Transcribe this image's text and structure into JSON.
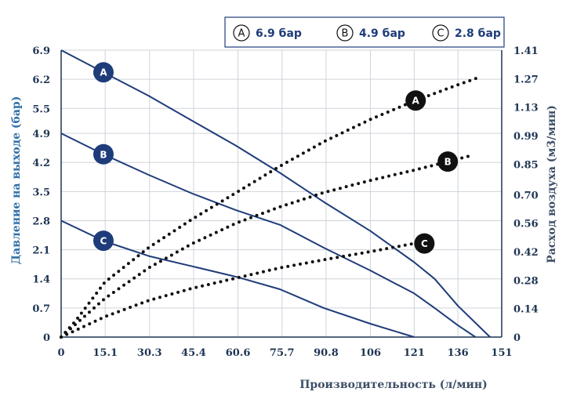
{
  "chart_data": {
    "type": "line",
    "xlabel": "Производительность (л/мин)",
    "ylabel_left": "Давление на выходе (бар)",
    "ylabel_right": "Расход воздуха (м3/мин)",
    "x_ticks": [
      "0",
      "15.1",
      "30.3",
      "45.4",
      "60.6",
      "75.7",
      "90.8",
      "106",
      "121",
      "136",
      "151"
    ],
    "x_tick_values": [
      0,
      15.1,
      30.3,
      45.4,
      60.6,
      75.7,
      90.8,
      106,
      121,
      136,
      151
    ],
    "xlim": [
      0,
      151
    ],
    "y_left_ticks": [
      "0",
      "0.7",
      "1.4",
      "2.1",
      "2.8",
      "3.5",
      "4.2",
      "4.9",
      "5.5",
      "6.2",
      "6.9"
    ],
    "y_left_tick_values": [
      0,
      0.7,
      1.4,
      2.1,
      2.8,
      3.5,
      4.2,
      4.9,
      5.5,
      6.2,
      6.9
    ],
    "ylim_left": [
      0,
      6.9
    ],
    "y_right_ticks": [
      "0",
      "0.14",
      "0.28",
      "0.42",
      "0.56",
      "0.70",
      "0.85",
      "0.99",
      "1.13",
      "1.27",
      "1.41"
    ],
    "y_right_tick_values": [
      0,
      0.14,
      0.28,
      0.42,
      0.56,
      0.7,
      0.85,
      0.99,
      1.13,
      1.27,
      1.41
    ],
    "ylim_right": [
      0,
      1.41
    ],
    "legend": [
      {
        "letter": "A",
        "label": "6.9 бар"
      },
      {
        "letter": "B",
        "label": "4.9 бар"
      },
      {
        "letter": "C",
        "label": "2.8 бар"
      }
    ],
    "legend_position": "top-right",
    "grid": true,
    "colors": {
      "pressure": "#1f3c7a",
      "air": "#111111",
      "grid": "#cfd3da",
      "axis_title": "#2e6fa8"
    },
    "series": [
      {
        "name": "A",
        "axis": "left",
        "style": "solid",
        "badge_x": 14.5,
        "x": [
          0,
          15,
          30,
          45,
          60,
          75,
          90,
          106,
          121,
          128,
          136,
          147
        ],
        "y": [
          6.9,
          6.35,
          5.8,
          5.2,
          4.6,
          3.95,
          3.25,
          2.55,
          1.8,
          1.4,
          0.75,
          0.0
        ]
      },
      {
        "name": "B",
        "axis": "left",
        "style": "solid",
        "badge_x": 14.5,
        "x": [
          0,
          15,
          30,
          45,
          60,
          75,
          90,
          106,
          121,
          128,
          136,
          142
        ],
        "y": [
          4.9,
          4.38,
          3.9,
          3.45,
          3.05,
          2.7,
          2.15,
          1.6,
          1.05,
          0.7,
          0.28,
          0.0
        ]
      },
      {
        "name": "C",
        "axis": "left",
        "style": "solid",
        "badge_x": 14.5,
        "x": [
          0,
          15,
          30,
          45,
          60,
          75,
          90,
          106,
          121
        ],
        "y": [
          2.8,
          2.3,
          1.95,
          1.7,
          1.45,
          1.15,
          0.7,
          0.32,
          0.0
        ]
      },
      {
        "name": "A",
        "axis": "right",
        "style": "dotted",
        "badge_x": 121.5,
        "x": [
          0,
          5,
          15,
          30,
          45,
          60,
          75,
          90,
          106,
          121,
          136,
          144
        ],
        "y": [
          0,
          0.08,
          0.27,
          0.44,
          0.58,
          0.71,
          0.84,
          0.96,
          1.07,
          1.16,
          1.24,
          1.28
        ]
      },
      {
        "name": "B",
        "axis": "right",
        "style": "dotted",
        "badge_x": 132.5,
        "x": [
          0,
          15,
          30,
          45,
          60,
          75,
          90,
          106,
          121,
          140
        ],
        "y": [
          0,
          0.19,
          0.34,
          0.46,
          0.56,
          0.64,
          0.71,
          0.77,
          0.82,
          0.89
        ]
      },
      {
        "name": "C",
        "axis": "right",
        "style": "dotted",
        "badge_x": 124.5,
        "x": [
          0,
          15,
          30,
          45,
          60,
          75,
          90,
          106,
          121
        ],
        "y": [
          0,
          0.1,
          0.18,
          0.24,
          0.29,
          0.34,
          0.38,
          0.42,
          0.46
        ]
      }
    ]
  }
}
